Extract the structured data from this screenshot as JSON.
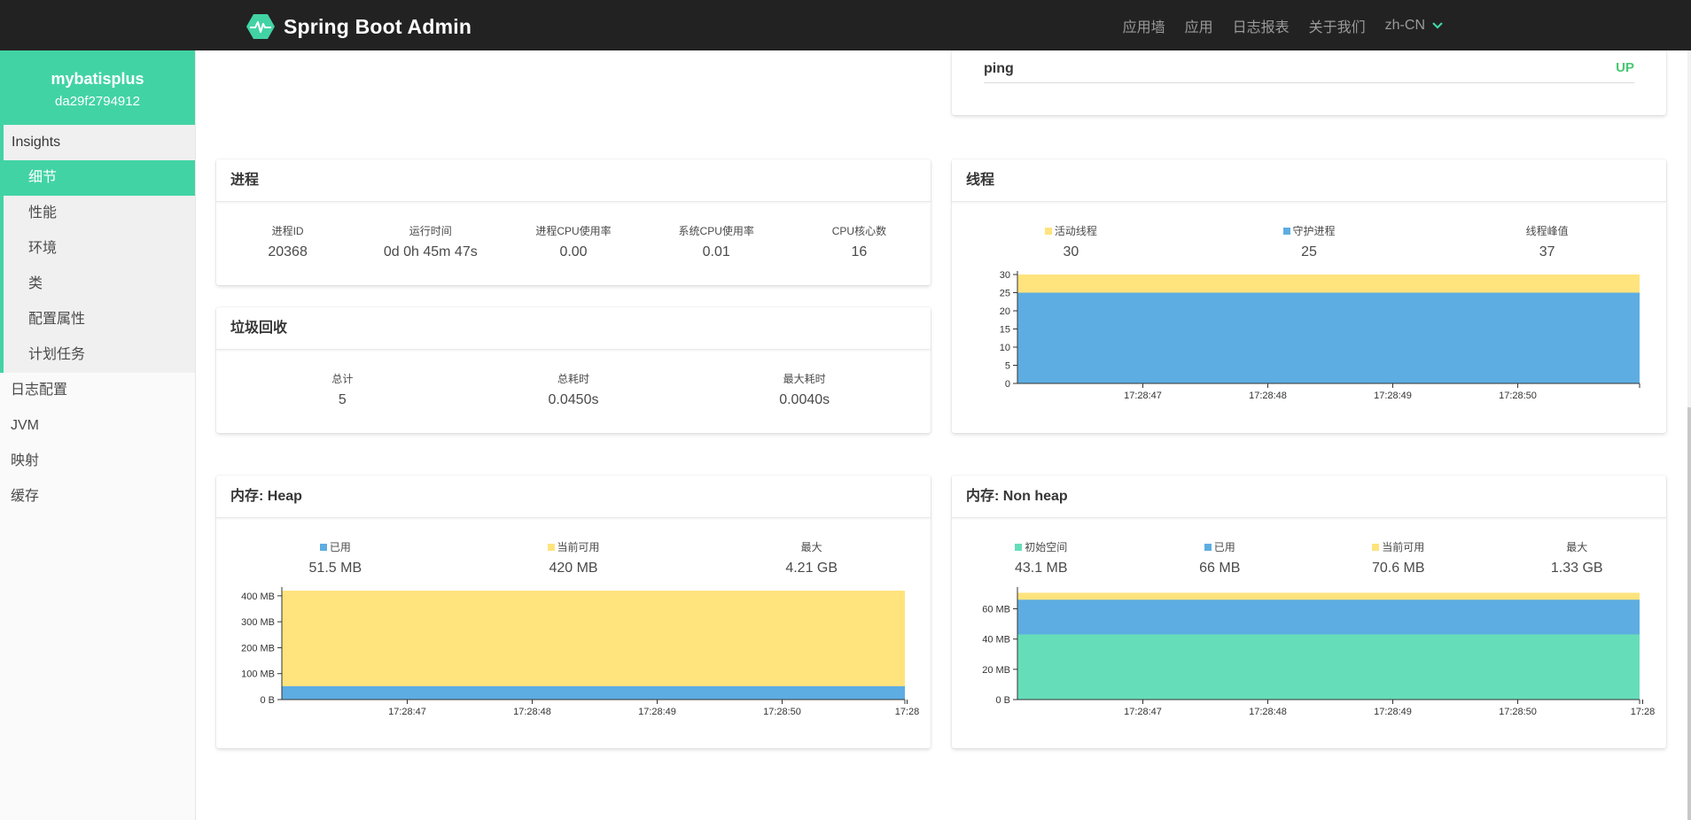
{
  "navbar": {
    "brand": "Spring Boot Admin",
    "links": [
      "应用墙",
      "应用",
      "日志报表",
      "关于我们"
    ],
    "language": "zh-CN"
  },
  "sidebar": {
    "app_name": "mybatisplus",
    "app_id": "da29f2794912",
    "group_title": "Insights",
    "group_items": [
      "细节",
      "性能",
      "环境",
      "类",
      "配置属性",
      "计划任务"
    ],
    "active_item": "细节",
    "items": [
      "日志配置",
      "JVM",
      "映射",
      "缓存"
    ]
  },
  "health": {
    "name": "ping",
    "status": "UP"
  },
  "process": {
    "title": "进程",
    "stats": [
      {
        "label": "进程ID",
        "value": "20368"
      },
      {
        "label": "运行时间",
        "value": "0d 0h 45m 47s"
      },
      {
        "label": "进程CPU使用率",
        "value": "0.00"
      },
      {
        "label": "系统CPU使用率",
        "value": "0.01"
      },
      {
        "label": "CPU核心数",
        "value": "16"
      }
    ]
  },
  "gc": {
    "title": "垃圾回收",
    "stats": [
      {
        "label": "总计",
        "value": "5"
      },
      {
        "label": "总耗时",
        "value": "0.0450s"
      },
      {
        "label": "最大耗时",
        "value": "0.0040s"
      }
    ]
  },
  "threads": {
    "title": "线程",
    "stats": [
      {
        "label": "活动线程",
        "value": "30",
        "color": "#ffe37d"
      },
      {
        "label": "守护进程",
        "value": "25",
        "color": "#5dade2"
      },
      {
        "label": "线程峰值",
        "value": "37"
      }
    ]
  },
  "heap": {
    "title": "内存: Heap",
    "stats": [
      {
        "label": "已用",
        "value": "51.5 MB",
        "color": "#5dade2"
      },
      {
        "label": "当前可用",
        "value": "420 MB",
        "color": "#ffe37d"
      },
      {
        "label": "最大",
        "value": "4.21 GB"
      }
    ]
  },
  "nonheap": {
    "title": "内存: Non heap",
    "stats": [
      {
        "label": "初始空间",
        "value": "43.1 MB",
        "color": "#66ddb9"
      },
      {
        "label": "已用",
        "value": "66 MB",
        "color": "#5dade2"
      },
      {
        "label": "当前可用",
        "value": "70.6 MB",
        "color": "#ffe37d"
      },
      {
        "label": "最大",
        "value": "1.33 GB"
      }
    ]
  },
  "chart_data": [
    {
      "type": "area",
      "x": [
        "17:28:47",
        "17:28:48",
        "17:28:49",
        "17:28:50"
      ],
      "x_ticks": [
        "17:28:47",
        "17:28:48",
        "17:28:49",
        "17:28:50"
      ],
      "y_ticks": [
        "0",
        "5",
        "10",
        "15",
        "20",
        "25",
        "30"
      ],
      "ylim": [
        0,
        30
      ],
      "series": [
        {
          "name": "守护进程",
          "values": [
            25,
            25,
            25,
            25
          ],
          "color": "#5dade2"
        },
        {
          "name": "活动线程",
          "values": [
            30,
            30,
            30,
            30
          ],
          "color": "#ffe37d"
        }
      ]
    },
    {
      "type": "area",
      "x": [
        "17:28:47",
        "17:28:48",
        "17:28:49",
        "17:28:50"
      ],
      "x_ticks": [
        "17:28:47",
        "17:28:48",
        "17:28:49",
        "17:28:50",
        "17:28"
      ],
      "y_ticks": [
        "0 B",
        "100 MB",
        "200 MB",
        "300 MB",
        "400 MB"
      ],
      "ylim": [
        0,
        420
      ],
      "unit": "MB",
      "series": [
        {
          "name": "已用",
          "values": [
            51.5,
            51.5,
            51.5,
            51.5
          ],
          "color": "#5dade2"
        },
        {
          "name": "当前可用",
          "values": [
            420,
            420,
            420,
            420
          ],
          "color": "#ffe37d"
        }
      ]
    },
    {
      "type": "area",
      "x": [
        "17:28:47",
        "17:28:48",
        "17:28:49",
        "17:28:50"
      ],
      "x_ticks": [
        "17:28:47",
        "17:28:48",
        "17:28:49",
        "17:28:50",
        "17:28"
      ],
      "y_ticks": [
        "0 B",
        "20 MB",
        "40 MB",
        "60 MB"
      ],
      "ylim": [
        0,
        70.6
      ],
      "unit": "MB",
      "series": [
        {
          "name": "初始空间",
          "values": [
            43.1,
            43.1,
            43.1,
            43.1
          ],
          "color": "#66ddb9"
        },
        {
          "name": "已用",
          "values": [
            66,
            66,
            66,
            66
          ],
          "color": "#5dade2"
        },
        {
          "name": "当前可用",
          "values": [
            70.6,
            70.6,
            70.6,
            70.6
          ],
          "color": "#ffe37d"
        }
      ]
    }
  ]
}
